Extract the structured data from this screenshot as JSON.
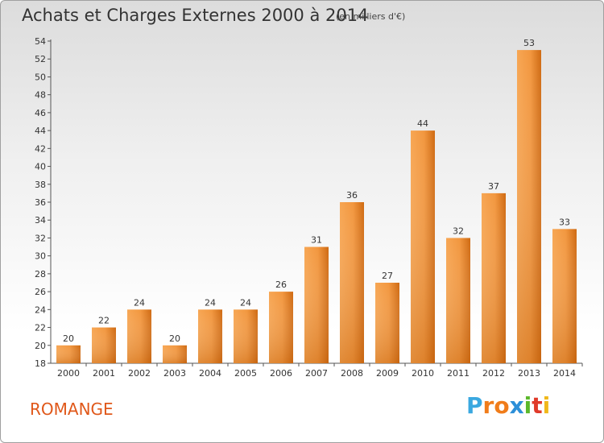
{
  "title": "Achats et Charges Externes 2000 à 2014",
  "unit_note": "(en milliers d'€)",
  "location": "ROMANGE",
  "brand": {
    "letters": [
      "P",
      "r",
      "o",
      "x",
      "i",
      "t",
      "i"
    ],
    "colors": [
      "#3aa8e0",
      "#f07c1a",
      "#f07c1a",
      "#2c8fd8",
      "#5cb82c",
      "#e03a2a",
      "#f0b81a"
    ]
  },
  "chart_data": {
    "type": "bar",
    "categories": [
      "2000",
      "2001",
      "2002",
      "2003",
      "2004",
      "2005",
      "2006",
      "2007",
      "2008",
      "2009",
      "2010",
      "2011",
      "2012",
      "2013",
      "2014"
    ],
    "values": [
      20,
      22,
      24,
      20,
      24,
      24,
      26,
      31,
      36,
      27,
      44,
      32,
      37,
      53,
      33
    ],
    "ylim": [
      18,
      54
    ],
    "yticks": [
      18,
      20,
      22,
      24,
      26,
      28,
      30,
      32,
      34,
      36,
      38,
      40,
      42,
      44,
      46,
      48,
      50,
      52,
      54
    ],
    "grid": false,
    "bar_color_light": "#f7a653",
    "bar_color_dark": "#cf6a12"
  }
}
